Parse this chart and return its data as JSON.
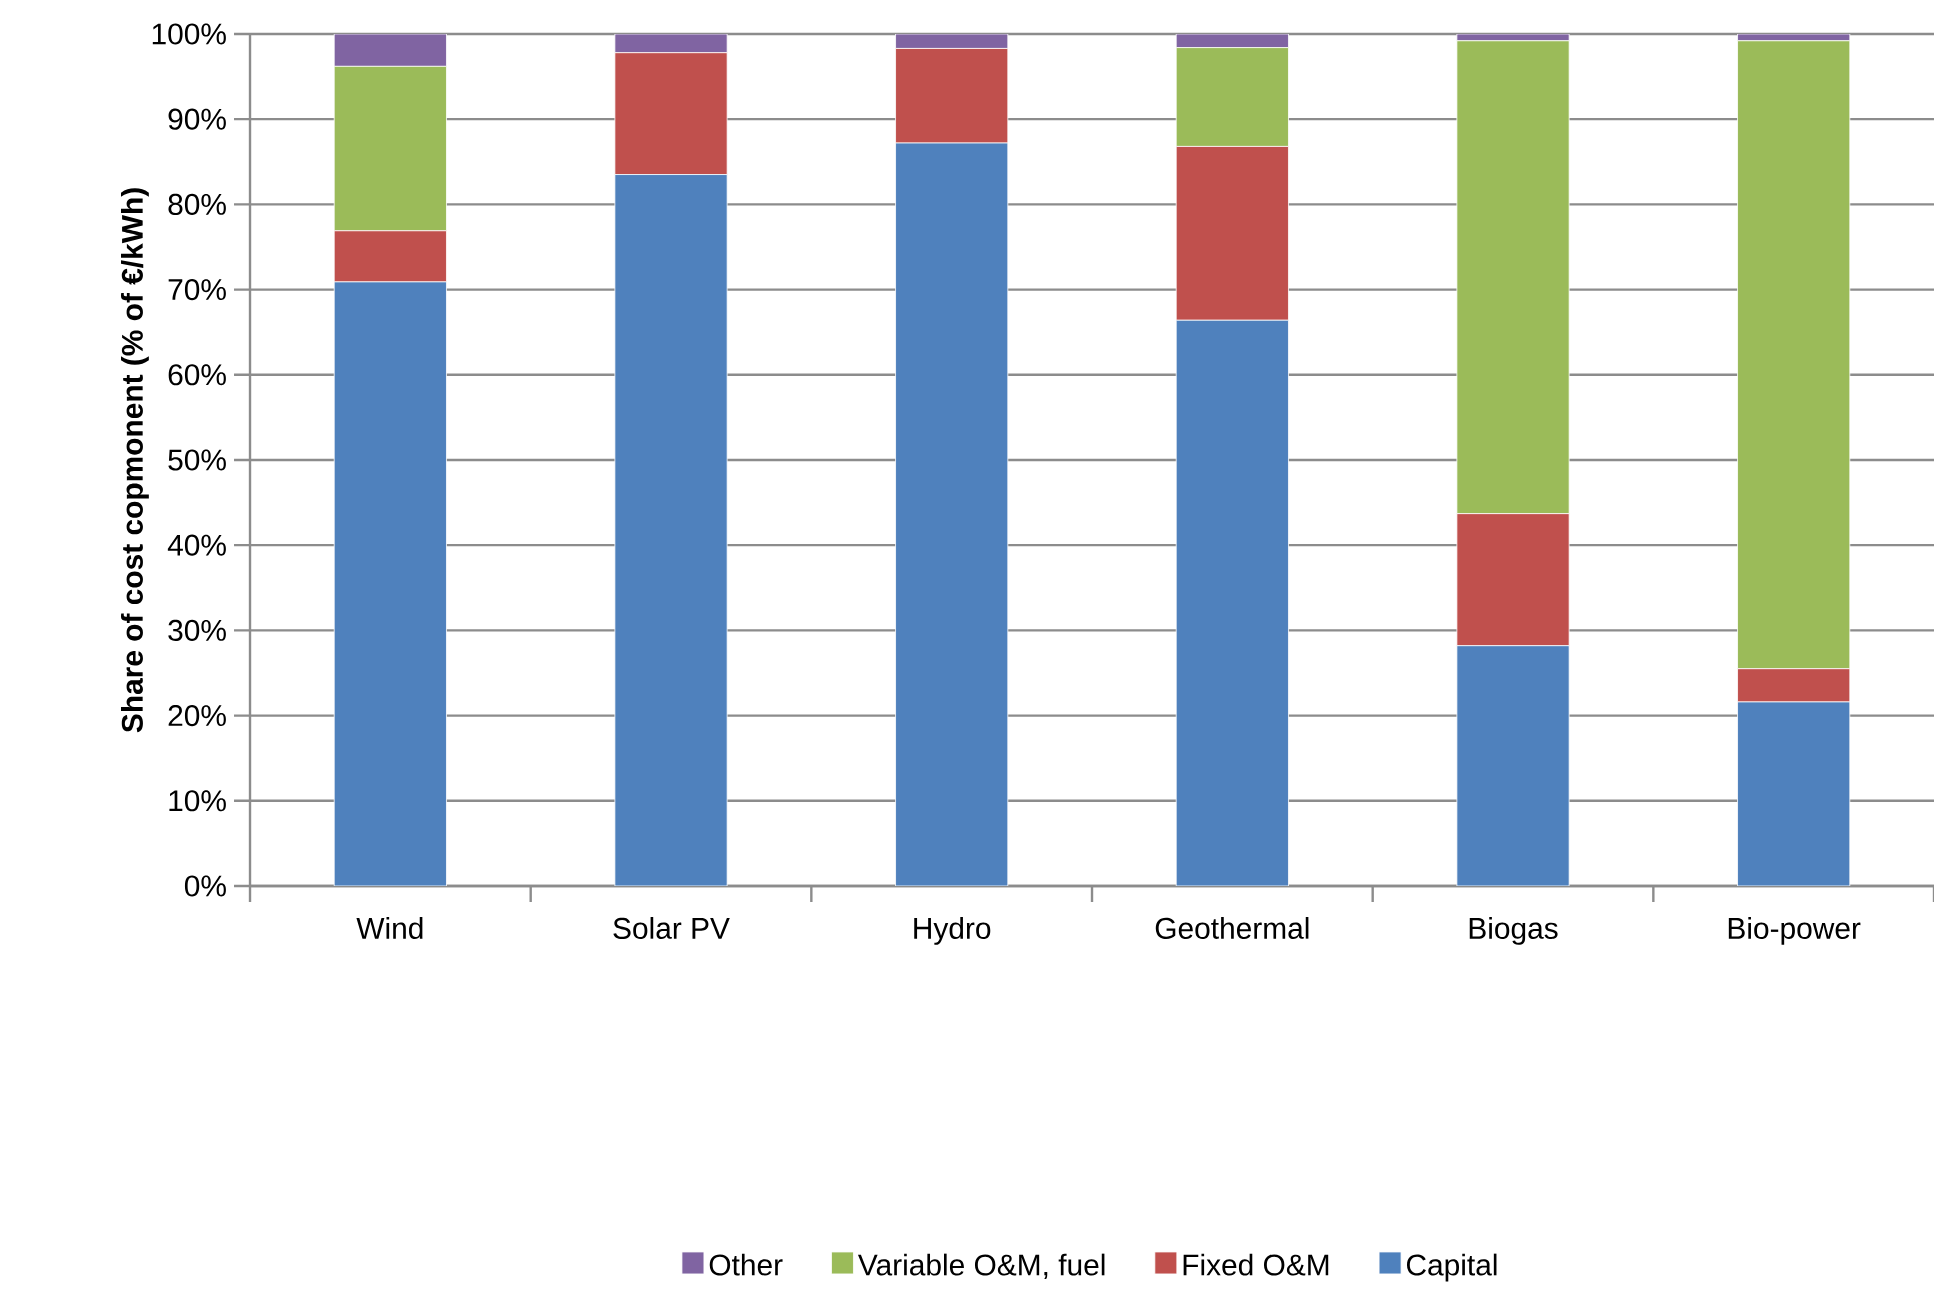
{
  "chart_data": {
    "type": "bar",
    "stacked": true,
    "ylabel": "Share of cost copmonent (% of €/kWh)",
    "categories": [
      "Wind",
      "Solar PV",
      "Hydro",
      "Geothermal",
      "Biogas",
      "Bio-power"
    ],
    "series": [
      {
        "name": "Capital",
        "color": "#4f81bd",
        "values": [
          70.9,
          83.5,
          87.2,
          66.4,
          28.2,
          21.6
        ]
      },
      {
        "name": "Fixed O&M",
        "color": "#c0504d",
        "values": [
          6.0,
          14.3,
          11.1,
          20.4,
          15.5,
          3.9
        ]
      },
      {
        "name": "Variable O&M,  fuel",
        "color": "#9bbb59",
        "values": [
          19.3,
          0,
          0,
          11.6,
          55.5,
          73.7
        ]
      },
      {
        "name": "Other",
        "color": "#8064a2",
        "values": [
          3.8,
          2.2,
          1.7,
          1.6,
          0.8,
          0.8
        ]
      }
    ],
    "ylim": [
      0,
      100
    ],
    "yticks": [
      {
        "value": 0,
        "label": "0%"
      },
      {
        "value": 10,
        "label": "10%"
      },
      {
        "value": 20,
        "label": "20%"
      },
      {
        "value": 30,
        "label": "30%"
      },
      {
        "value": 40,
        "label": "40%"
      },
      {
        "value": 50,
        "label": "50%"
      },
      {
        "value": 60,
        "label": "60%"
      },
      {
        "value": 70,
        "label": "70%"
      },
      {
        "value": 80,
        "label": "80%"
      },
      {
        "value": 90,
        "label": "90%"
      },
      {
        "value": 100,
        "label": "100%"
      }
    ],
    "grid": "y",
    "legend": "bottom"
  }
}
